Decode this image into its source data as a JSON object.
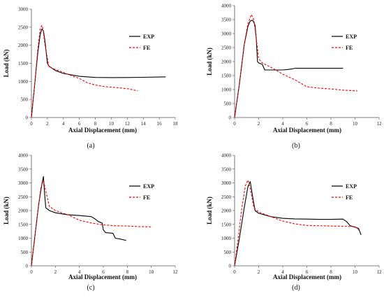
{
  "chart_data": [
    {
      "type": "line",
      "caption": "(a)",
      "xlabel": "Axial Displacement (mm)",
      "ylabel": "Load (kN)",
      "xlim": [
        0,
        18
      ],
      "xticks": [
        0,
        2,
        4,
        6,
        8,
        10,
        12,
        14,
        16,
        18
      ],
      "ylim": [
        0,
        3000
      ],
      "yticks": [
        0,
        500,
        1000,
        1500,
        2000,
        2500,
        3000
      ],
      "series": [
        {
          "name": "EXP",
          "color": "#000000",
          "dash": "solid",
          "x": [
            0,
            0.4,
            0.8,
            1.1,
            1.3,
            1.5,
            1.7,
            2.0,
            2.2,
            3.0,
            4.0,
            6.0,
            8.0,
            10.0,
            12.0,
            14.0,
            16.0,
            16.8
          ],
          "y": [
            0,
            900,
            1800,
            2300,
            2450,
            2400,
            2100,
            1500,
            1420,
            1300,
            1220,
            1140,
            1110,
            1105,
            1108,
            1112,
            1120,
            1125
          ]
        },
        {
          "name": "FE",
          "color": "#ff0000",
          "dash": "dashed",
          "x": [
            0,
            0.4,
            0.8,
            1.1,
            1.3,
            1.45,
            1.7,
            2.2,
            3.0,
            4.0,
            5.0,
            6.0,
            7.0,
            8.0,
            9.0,
            10.0,
            11.0,
            12.0,
            13.3
          ],
          "y": [
            0,
            900,
            1900,
            2450,
            2550,
            2450,
            2000,
            1400,
            1330,
            1250,
            1160,
            1080,
            960,
            900,
            860,
            840,
            820,
            800,
            740
          ]
        }
      ]
    },
    {
      "type": "line",
      "caption": "(b)",
      "xlabel": "Axial Displacement (mm)",
      "ylabel": "Load (kN)",
      "xlim": [
        0,
        12
      ],
      "xticks": [
        0,
        2,
        4,
        6,
        8,
        10,
        12
      ],
      "ylim": [
        0,
        4000
      ],
      "yticks": [
        0,
        500,
        1000,
        1500,
        2000,
        2500,
        3000,
        3500,
        4000
      ],
      "series": [
        {
          "name": "EXP",
          "color": "#000000",
          "dash": "solid",
          "x": [
            0,
            0.4,
            0.8,
            1.1,
            1.3,
            1.5,
            1.7,
            1.8,
            1.9,
            2.0,
            2.3,
            2.5,
            3.0,
            4.0,
            4.5,
            4.8,
            5.0,
            6.0,
            7.0,
            8.0,
            9.0
          ],
          "y": [
            0,
            1200,
            2600,
            3250,
            3450,
            3480,
            3300,
            2800,
            2000,
            1950,
            1900,
            1700,
            1700,
            1700,
            1720,
            1740,
            1760,
            1760,
            1760,
            1760,
            1760
          ]
        },
        {
          "name": "FE",
          "color": "#ff0000",
          "dash": "dashed",
          "x": [
            0,
            0.4,
            0.8,
            1.1,
            1.4,
            1.6,
            1.8,
            2.0,
            2.3,
            3.0,
            4.0,
            5.0,
            6.0,
            7.0,
            8.0,
            9.0,
            10.2
          ],
          "y": [
            0,
            1200,
            2600,
            3350,
            3680,
            3500,
            2800,
            2100,
            1950,
            1800,
            1550,
            1350,
            1100,
            1050,
            1020,
            980,
            950
          ]
        }
      ]
    },
    {
      "type": "line",
      "caption": "(c)",
      "xlabel": "Axial Displacement (mm)",
      "ylabel": "Load (kN)",
      "xlim": [
        0,
        12
      ],
      "xticks": [
        0,
        2,
        4,
        6,
        8,
        10,
        12
      ],
      "ylim": [
        0,
        4000
      ],
      "yticks": [
        0,
        500,
        1000,
        1500,
        2000,
        2500,
        3000,
        3500,
        4000
      ],
      "series": [
        {
          "name": "EXP",
          "color": "#000000",
          "dash": "solid",
          "x": [
            0,
            0.3,
            0.6,
            0.85,
            1.0,
            1.1,
            1.2,
            1.5,
            2.0,
            3.0,
            4.0,
            5.0,
            5.3,
            5.6,
            5.9,
            6.0,
            6.2,
            6.8,
            7.0,
            7.4,
            7.6,
            7.9
          ],
          "y": [
            0,
            1100,
            2200,
            2900,
            3230,
            2600,
            2100,
            2000,
            1920,
            1850,
            1820,
            1780,
            1700,
            1600,
            1550,
            1300,
            1200,
            1180,
            1000,
            970,
            950,
            920
          ]
        },
        {
          "name": "FE",
          "color": "#ff0000",
          "dash": "dashed",
          "x": [
            0,
            0.3,
            0.6,
            0.8,
            1.0,
            1.2,
            1.5,
            2.0,
            3.0,
            4.0,
            5.0,
            6.0,
            7.0,
            8.0,
            9.0,
            10.0
          ],
          "y": [
            0,
            1100,
            2200,
            2850,
            3100,
            2700,
            2150,
            2000,
            1850,
            1650,
            1550,
            1480,
            1450,
            1440,
            1420,
            1410
          ]
        }
      ]
    },
    {
      "type": "line",
      "caption": "(d)",
      "xlabel": "Axial Displacement (mm)",
      "ylabel": "Load (kN)",
      "xlim": [
        0,
        12
      ],
      "xticks": [
        0,
        2,
        4,
        6,
        8,
        10,
        12
      ],
      "ylim": [
        0,
        4000
      ],
      "yticks": [
        0,
        500,
        1000,
        1500,
        2000,
        2500,
        3000,
        3500,
        4000
      ],
      "series": [
        {
          "name": "EXP",
          "color": "#000000",
          "dash": "solid",
          "x": [
            0,
            0.4,
            0.8,
            1.1,
            1.3,
            1.5,
            1.7,
            2.0,
            3.0,
            4.0,
            5.0,
            6.0,
            7.0,
            8.0,
            9.0,
            9.3,
            9.6,
            10.0,
            10.3,
            10.5
          ],
          "y": [
            0,
            1000,
            2100,
            2850,
            3050,
            2500,
            2000,
            1900,
            1780,
            1720,
            1700,
            1690,
            1680,
            1680,
            1690,
            1600,
            1450,
            1400,
            1350,
            1120
          ]
        },
        {
          "name": "FE",
          "color": "#ff0000",
          "dash": "dashed",
          "x": [
            0,
            0.3,
            0.6,
            0.9,
            1.1,
            1.3,
            1.6,
            2.0,
            3.0,
            4.0,
            5.0,
            6.0,
            7.0,
            8.0,
            9.0,
            10.0,
            10.3
          ],
          "y": [
            0,
            1000,
            2100,
            2900,
            3100,
            2800,
            2100,
            1950,
            1780,
            1620,
            1520,
            1460,
            1450,
            1440,
            1430,
            1420,
            1300
          ]
        }
      ]
    }
  ]
}
